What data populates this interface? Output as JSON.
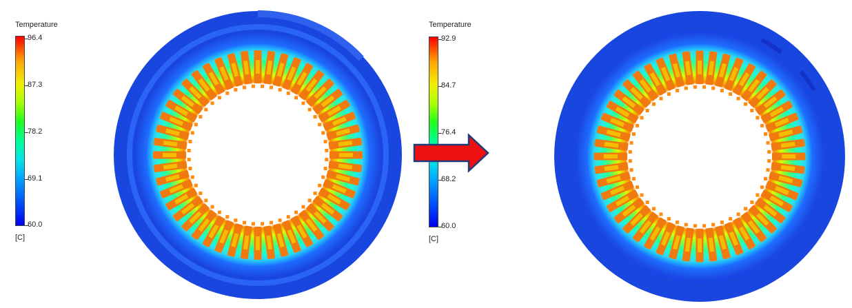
{
  "legends": [
    {
      "title": "Temperature",
      "ticks": [
        "96.4",
        "87.3",
        "78.2",
        "69.1",
        "60.0"
      ],
      "unit": "[C]"
    },
    {
      "title": "Temperature",
      "ticks": [
        "92.9",
        "84.7",
        "76.4",
        "68.2",
        "60.0"
      ],
      "unit": "[C]"
    }
  ],
  "figures": [
    {
      "name": "stator-temperature-before",
      "slots": 48
    },
    {
      "name": "stator-temperature-after",
      "slots": 48
    }
  ],
  "colors": {
    "outer_housing": "#1a46e0",
    "cold": "#0000f0",
    "hot": "#ff0000",
    "tooth": "#f07a10",
    "arrow_fill": "#ee1111",
    "arrow_stroke": "#1f3b78"
  }
}
